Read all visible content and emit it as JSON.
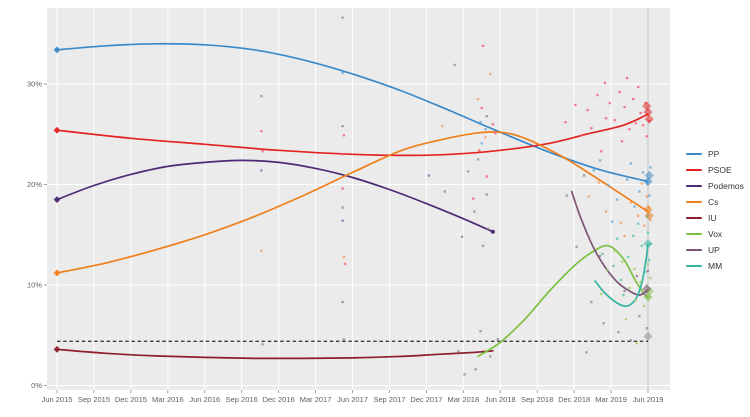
{
  "chart_data": {
    "type": "line",
    "title": "",
    "x_axis": {
      "tick_months": [
        0,
        3,
        6,
        9,
        12,
        15,
        18,
        21,
        24,
        27,
        30,
        33,
        36,
        39,
        42,
        45,
        48
      ],
      "tick_labels": [
        "Jun 2015",
        "Sep 2015",
        "Dec 2015",
        "Mar 2016",
        "Jun 2016",
        "Sep 2016",
        "Dec 2016",
        "Mar 2017",
        "Jun 2017",
        "Sep 2017",
        "Dec 2017",
        "Mar 2018",
        "Jun 2018",
        "Sep 2018",
        "Dec 2018",
        "Mar 2019",
        "Jun 2019"
      ]
    },
    "y_axis": {
      "tick_values": [
        0,
        10,
        20,
        30
      ],
      "tick_labels": [
        "0%",
        "10%",
        "20%",
        "30%"
      ],
      "minor_values": [
        5,
        15,
        25,
        35
      ],
      "range": [
        0,
        37.5
      ]
    },
    "threshold": {
      "value": 4.4,
      "color": "#3d3d3d",
      "style": "dashed"
    },
    "event_line": {
      "month": 48,
      "color": "#c4c4c4"
    },
    "panel_bg": "#ebebeb",
    "grid_color": "#ffffff",
    "axis_text_color": "#606060",
    "legend": {
      "items": [
        {
          "id": "pp",
          "label": "PP",
          "color": "#3a89c9"
        },
        {
          "id": "psoe",
          "label": "PSOE",
          "color": "#e32322"
        },
        {
          "id": "podemos",
          "label": "Podemos",
          "color": "#4e2a74"
        },
        {
          "id": "cs",
          "label": "Cs",
          "color": "#ef7f1a"
        },
        {
          "id": "iu",
          "label": "IU",
          "color": "#8d1f2d"
        },
        {
          "id": "vox",
          "label": "Vox",
          "color": "#7cc141"
        },
        {
          "id": "up",
          "label": "UP",
          "color": "#7d5674"
        },
        {
          "id": "mm",
          "label": "MM",
          "color": "#34b5a2"
        }
      ]
    },
    "series": [
      {
        "id": "pp",
        "name": "PP",
        "color": "#3a89c9",
        "points": [
          [
            0,
            33.4
          ],
          [
            4,
            33.8
          ],
          [
            8,
            34.0
          ],
          [
            12,
            33.9
          ],
          [
            16,
            33.4
          ],
          [
            20,
            32.4
          ],
          [
            24,
            31.0
          ],
          [
            28,
            29.3
          ],
          [
            32,
            27.3
          ],
          [
            36,
            25.2
          ],
          [
            40,
            23.2
          ],
          [
            44,
            21.5
          ],
          [
            48,
            20.3
          ]
        ]
      },
      {
        "id": "psoe",
        "name": "PSOE",
        "color": "#e32322",
        "points": [
          [
            0,
            25.4
          ],
          [
            6,
            24.6
          ],
          [
            12,
            24.0
          ],
          [
            18,
            23.4
          ],
          [
            24,
            23.0
          ],
          [
            28,
            22.9
          ],
          [
            32,
            23.0
          ],
          [
            36,
            23.4
          ],
          [
            40,
            24.1
          ],
          [
            43,
            25.0
          ],
          [
            46,
            25.9
          ],
          [
            48,
            27.0
          ]
        ]
      },
      {
        "id": "podemos",
        "name": "Podemos",
        "color": "#4e2a74",
        "points": [
          [
            0,
            18.5
          ],
          [
            3,
            19.9
          ],
          [
            6,
            21.0
          ],
          [
            9,
            21.8
          ],
          [
            12,
            22.2
          ],
          [
            15,
            22.4
          ],
          [
            18,
            22.2
          ],
          [
            21,
            21.6
          ],
          [
            24,
            20.7
          ],
          [
            27,
            19.5
          ],
          [
            30,
            18.1
          ],
          [
            33,
            16.6
          ],
          [
            35.4,
            15.3
          ]
        ]
      },
      {
        "id": "cs",
        "name": "Cs",
        "color": "#ef7f1a",
        "points": [
          [
            0,
            11.2
          ],
          [
            4,
            12.2
          ],
          [
            8,
            13.5
          ],
          [
            12,
            15.0
          ],
          [
            16,
            16.8
          ],
          [
            20,
            18.9
          ],
          [
            24,
            21.2
          ],
          [
            28,
            23.4
          ],
          [
            31,
            24.4
          ],
          [
            34,
            25.1
          ],
          [
            36,
            25.2
          ],
          [
            38,
            24.6
          ],
          [
            41,
            22.8
          ],
          [
            44,
            20.5
          ],
          [
            46,
            18.9
          ],
          [
            48,
            17.3
          ]
        ]
      },
      {
        "id": "iu",
        "name": "IU",
        "color": "#8d1f2d",
        "points": [
          [
            0,
            3.6
          ],
          [
            4,
            3.2
          ],
          [
            8,
            2.95
          ],
          [
            12,
            2.8
          ],
          [
            16,
            2.7
          ],
          [
            20,
            2.7
          ],
          [
            24,
            2.75
          ],
          [
            28,
            2.9
          ],
          [
            31,
            3.1
          ],
          [
            34,
            3.3
          ],
          [
            35.4,
            3.45
          ]
        ]
      },
      {
        "id": "vox",
        "name": "Vox",
        "color": "#7cc141",
        "points": [
          [
            34.2,
            2.9
          ],
          [
            36,
            4.3
          ],
          [
            38,
            6.6
          ],
          [
            40,
            9.4
          ],
          [
            42,
            11.9
          ],
          [
            43.5,
            13.3
          ],
          [
            44.8,
            13.9
          ],
          [
            46,
            12.6
          ],
          [
            47,
            10.4
          ],
          [
            47.7,
            9.1
          ],
          [
            48,
            8.7
          ]
        ]
      },
      {
        "id": "up",
        "name": "UP",
        "color": "#7d5674",
        "points": [
          [
            41.8,
            19.3
          ],
          [
            42.5,
            16.8
          ],
          [
            43.5,
            13.9
          ],
          [
            44.5,
            11.8
          ],
          [
            45.5,
            10.3
          ],
          [
            46.5,
            9.4
          ],
          [
            47.3,
            9.0
          ],
          [
            48,
            9.5
          ]
        ]
      },
      {
        "id": "mm",
        "name": "MM",
        "color": "#34b5a2",
        "points": [
          [
            43.7,
            10.4
          ],
          [
            44.5,
            9.2
          ],
          [
            45.5,
            8.2
          ],
          [
            46.3,
            7.9
          ],
          [
            47,
            8.6
          ],
          [
            47.5,
            10.2
          ],
          [
            47.8,
            12.2
          ],
          [
            48,
            14.0
          ]
        ]
      }
    ],
    "endpoint_dots": [
      [
        35.4,
        15.3,
        "podemos"
      ]
    ],
    "start_markers": [
      [
        0,
        33.4,
        "pp"
      ],
      [
        0,
        25.4,
        "psoe"
      ],
      [
        0,
        18.5,
        "podemos"
      ],
      [
        0,
        11.2,
        "cs"
      ],
      [
        0,
        3.6,
        "iu"
      ]
    ],
    "end_markers": [
      [
        47.9,
        27.8,
        "psoe"
      ],
      [
        48,
        27.2,
        "psoe"
      ],
      [
        48.1,
        26.5,
        "psoe"
      ],
      [
        48,
        20.3,
        "pp"
      ],
      [
        48.1,
        20.9,
        "pp"
      ],
      [
        48,
        17.5,
        "cs"
      ],
      [
        48.1,
        16.9,
        "cs"
      ],
      [
        48,
        14.1,
        "mm"
      ],
      [
        48,
        8.8,
        "vox"
      ],
      [
        48.1,
        9.4,
        "vox"
      ],
      [
        47.9,
        9.6,
        "up"
      ],
      [
        48,
        4.9,
        "gray"
      ]
    ],
    "scatter_colors": {
      "pp": "#68a8d8",
      "psoe": "#ef5f78",
      "cs": "#f59e62",
      "podemos": "#8a6aa8",
      "iu": "#a8505f",
      "vox": "#9ccf63",
      "up": "#997b90",
      "mm": "#55c4b2",
      "gray": "#8f8f8f",
      "yellow": "#c9c23e"
    },
    "scatter": [
      [
        16.6,
        28.8,
        "gray"
      ],
      [
        16.6,
        25.3,
        "psoe"
      ],
      [
        16.7,
        23.3,
        "psoe"
      ],
      [
        16.6,
        21.4,
        "podemos"
      ],
      [
        16.6,
        13.4,
        "cs"
      ],
      [
        16.7,
        4.1,
        "gray"
      ],
      [
        23.2,
        36.6,
        "gray"
      ],
      [
        23.2,
        31.1,
        "pp"
      ],
      [
        23.2,
        25.8,
        "gray"
      ],
      [
        23.3,
        24.9,
        "psoe"
      ],
      [
        23.2,
        23.0,
        "psoe"
      ],
      [
        23.2,
        19.6,
        "psoe"
      ],
      [
        23.2,
        17.7,
        "gray"
      ],
      [
        23.2,
        16.4,
        "podemos"
      ],
      [
        23.3,
        12.8,
        "cs"
      ],
      [
        23.4,
        12.1,
        "psoe"
      ],
      [
        23.2,
        8.3,
        "gray"
      ],
      [
        23.3,
        4.6,
        "gray"
      ],
      [
        30.2,
        20.9,
        "podemos"
      ],
      [
        31.3,
        25.8,
        "cs"
      ],
      [
        31.5,
        19.3,
        "gray"
      ],
      [
        34.6,
        33.8,
        "psoe"
      ],
      [
        32.3,
        31.9,
        "gray"
      ],
      [
        35.2,
        31.0,
        "cs"
      ],
      [
        34.2,
        28.5,
        "cs"
      ],
      [
        34.5,
        27.6,
        "psoe"
      ],
      [
        34.9,
        26.8,
        "gray"
      ],
      [
        34.4,
        26.2,
        "pp"
      ],
      [
        35.4,
        26.0,
        "psoe"
      ],
      [
        34.8,
        25.5,
        "pp"
      ],
      [
        35.6,
        25.1,
        "psoe"
      ],
      [
        34.8,
        24.7,
        "cs"
      ],
      [
        34.5,
        24.1,
        "pp"
      ],
      [
        34.3,
        23.4,
        "psoe"
      ],
      [
        34.2,
        22.5,
        "gray"
      ],
      [
        33.4,
        21.3,
        "gray"
      ],
      [
        34.9,
        20.8,
        "psoe"
      ],
      [
        34.9,
        19.0,
        "gray"
      ],
      [
        33.8,
        18.6,
        "psoe"
      ],
      [
        33.9,
        17.3,
        "gray"
      ],
      [
        35.0,
        15.6,
        "gray"
      ],
      [
        34.6,
        13.9,
        "gray"
      ],
      [
        32.9,
        14.8,
        "gray"
      ],
      [
        34.4,
        5.4,
        "gray"
      ],
      [
        35.8,
        4.6,
        "gray"
      ],
      [
        35.2,
        2.9,
        "gray"
      ],
      [
        34.0,
        1.6,
        "gray"
      ],
      [
        32.6,
        3.4,
        "gray"
      ],
      [
        33.1,
        1.1,
        "gray"
      ],
      [
        41.3,
        26.2,
        "psoe"
      ],
      [
        42.1,
        27.9,
        "psoe"
      ],
      [
        42.6,
        24.9,
        "psoe"
      ],
      [
        43.1,
        27.4,
        "psoe"
      ],
      [
        43.4,
        25.6,
        "psoe"
      ],
      [
        43.9,
        28.9,
        "psoe"
      ],
      [
        44.2,
        23.3,
        "psoe"
      ],
      [
        44.5,
        30.1,
        "psoe"
      ],
      [
        44.6,
        26.6,
        "psoe"
      ],
      [
        44.9,
        28.1,
        "psoe"
      ],
      [
        45.3,
        26.4,
        "psoe"
      ],
      [
        45.7,
        29.2,
        "psoe"
      ],
      [
        45.9,
        24.3,
        "psoe"
      ],
      [
        46.1,
        27.7,
        "psoe"
      ],
      [
        46.3,
        30.6,
        "psoe"
      ],
      [
        46.5,
        25.5,
        "psoe"
      ],
      [
        46.8,
        28.5,
        "psoe"
      ],
      [
        47.0,
        26.1,
        "psoe"
      ],
      [
        47.2,
        29.7,
        "psoe"
      ],
      [
        47.4,
        27.1,
        "psoe"
      ],
      [
        47.6,
        25.9,
        "psoe"
      ],
      [
        47.8,
        28.1,
        "psoe"
      ],
      [
        47.9,
        24.8,
        "psoe"
      ],
      [
        48.1,
        26.3,
        "psoe"
      ],
      [
        43.6,
        21.4,
        "pp"
      ],
      [
        44.1,
        22.4,
        "pp"
      ],
      [
        44.8,
        19.9,
        "pp"
      ],
      [
        45.1,
        16.3,
        "pp"
      ],
      [
        45.5,
        18.5,
        "pp"
      ],
      [
        46.3,
        20.5,
        "pp"
      ],
      [
        46.6,
        22.1,
        "pp"
      ],
      [
        46.9,
        17.8,
        "pp"
      ],
      [
        47.3,
        19.3,
        "pp"
      ],
      [
        47.6,
        21.2,
        "pp"
      ],
      [
        47.9,
        20.1,
        "pp"
      ],
      [
        48.0,
        16.9,
        "pp"
      ],
      [
        48.1,
        18.9,
        "pp"
      ],
      [
        48.2,
        21.7,
        "pp"
      ],
      [
        43.2,
        18.8,
        "cs"
      ],
      [
        44.0,
        20.2,
        "cs"
      ],
      [
        44.6,
        17.3,
        "cs"
      ],
      [
        45.8,
        16.2,
        "cs"
      ],
      [
        46.1,
        14.9,
        "cs"
      ],
      [
        46.6,
        18.2,
        "cs"
      ],
      [
        47.2,
        16.9,
        "cs"
      ],
      [
        47.5,
        20.1,
        "cs"
      ],
      [
        47.7,
        15.9,
        "cs"
      ],
      [
        47.9,
        18.8,
        "cs"
      ],
      [
        48.1,
        17.7,
        "cs"
      ],
      [
        48.2,
        16.5,
        "cs"
      ],
      [
        44.3,
        13.1,
        "mm"
      ],
      [
        45.2,
        11.9,
        "mm"
      ],
      [
        45.5,
        14.6,
        "mm"
      ],
      [
        45.8,
        10.5,
        "mm"
      ],
      [
        46.0,
        9.0,
        "mm"
      ],
      [
        46.4,
        12.8,
        "mm"
      ],
      [
        46.8,
        14.9,
        "mm"
      ],
      [
        47.2,
        16.1,
        "mm"
      ],
      [
        47.5,
        13.9,
        "mm"
      ],
      [
        47.8,
        11.3,
        "mm"
      ],
      [
        47.9,
        16.8,
        "mm"
      ],
      [
        48.0,
        15.2,
        "mm"
      ],
      [
        48.1,
        12.5,
        "mm"
      ],
      [
        48.2,
        14.1,
        "mm"
      ],
      [
        44.2,
        9.1,
        "vox"
      ],
      [
        44.7,
        11.5,
        "vox"
      ],
      [
        45.3,
        13.4,
        "vox"
      ],
      [
        45.9,
        12.3,
        "vox"
      ],
      [
        46.2,
        6.6,
        "vox"
      ],
      [
        46.5,
        9.7,
        "vox"
      ],
      [
        46.9,
        11.6,
        "vox"
      ],
      [
        47.0,
        8.5,
        "vox"
      ],
      [
        47.4,
        10.3,
        "vox"
      ],
      [
        47.7,
        7.9,
        "vox"
      ],
      [
        47.9,
        9.9,
        "vox"
      ],
      [
        48.0,
        12.1,
        "vox"
      ],
      [
        48.1,
        8.8,
        "vox"
      ],
      [
        48.2,
        10.7,
        "vox"
      ],
      [
        43.2,
        14.8,
        "up"
      ],
      [
        44.1,
        12.9,
        "up"
      ],
      [
        45.0,
        11.0,
        "up"
      ],
      [
        46.1,
        9.4,
        "up"
      ],
      [
        47.1,
        10.9,
        "up"
      ],
      [
        47.8,
        9.0,
        "up"
      ],
      [
        48.0,
        11.4,
        "up"
      ],
      [
        41.4,
        18.9,
        "gray"
      ],
      [
        42.2,
        13.8,
        "gray"
      ],
      [
        42.8,
        20.9,
        "gray"
      ],
      [
        43.0,
        3.3,
        "gray"
      ],
      [
        43.4,
        8.3,
        "gray"
      ],
      [
        44.4,
        6.2,
        "gray"
      ],
      [
        45.6,
        5.3,
        "gray"
      ],
      [
        46.6,
        4.5,
        "gray"
      ],
      [
        47.3,
        6.9,
        "gray"
      ],
      [
        47.9,
        5.7,
        "gray"
      ],
      [
        47.1,
        4.2,
        "yellow"
      ]
    ]
  }
}
